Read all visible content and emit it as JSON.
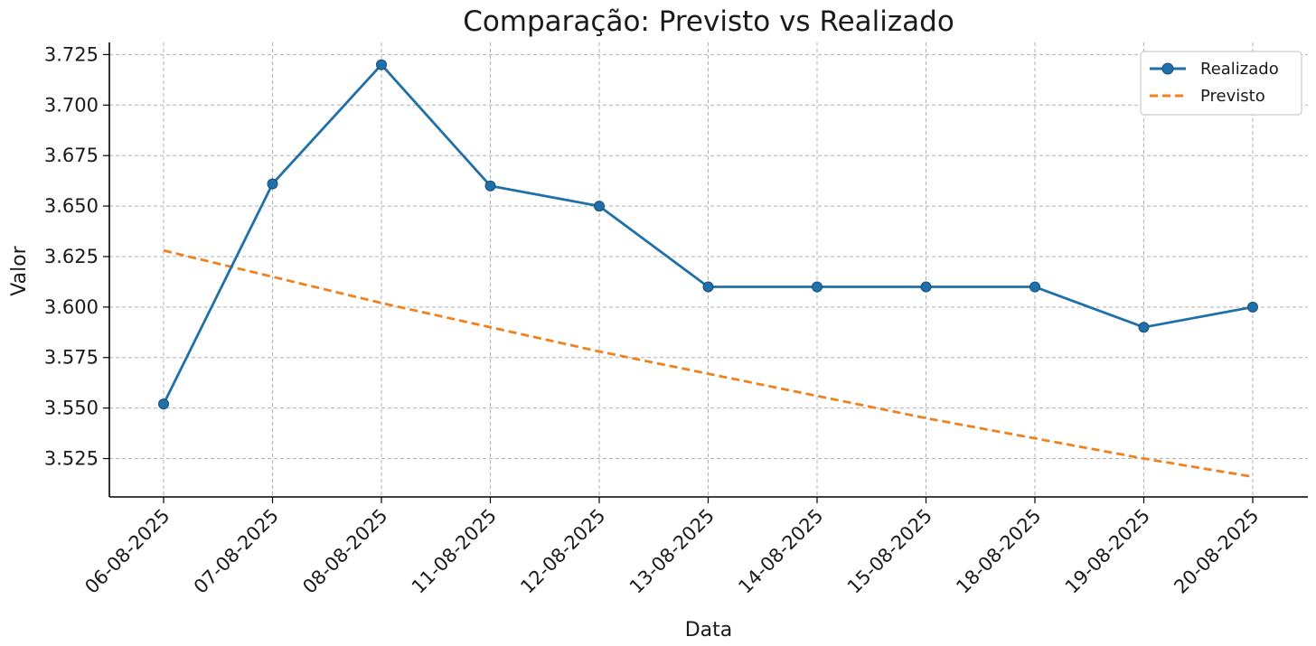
{
  "chart_data": {
    "type": "line",
    "title": "Comparação: Previsto vs Realizado",
    "xlabel": "Data",
    "ylabel": "Valor",
    "categories": [
      "06-08-2025",
      "07-08-2025",
      "08-08-2025",
      "11-08-2025",
      "12-08-2025",
      "13-08-2025",
      "14-08-2025",
      "15-08-2025",
      "18-08-2025",
      "19-08-2025",
      "20-08-2025"
    ],
    "ylim": [
      3.506,
      3.731
    ],
    "yticks": [
      3.525,
      3.55,
      3.575,
      3.6,
      3.625,
      3.65,
      3.675,
      3.7,
      3.725
    ],
    "ytick_labels": [
      "3.525",
      "3.550",
      "3.575",
      "3.600",
      "3.625",
      "3.650",
      "3.675",
      "3.700",
      "3.725"
    ],
    "grid": true,
    "legend_position": "top-right",
    "series": [
      {
        "name": "Realizado",
        "color": "#1f6fa8",
        "style": "solid",
        "marker": "circle",
        "values": [
          3.552,
          3.661,
          3.72,
          3.66,
          3.65,
          3.61,
          3.61,
          3.61,
          3.61,
          3.59,
          3.6
        ]
      },
      {
        "name": "Previsto",
        "color": "#f0811e",
        "style": "dashed",
        "marker": "none",
        "values": [
          3.628,
          3.615,
          3.602,
          3.59,
          3.578,
          3.567,
          3.556,
          3.545,
          3.535,
          3.525,
          3.516
        ]
      }
    ]
  }
}
